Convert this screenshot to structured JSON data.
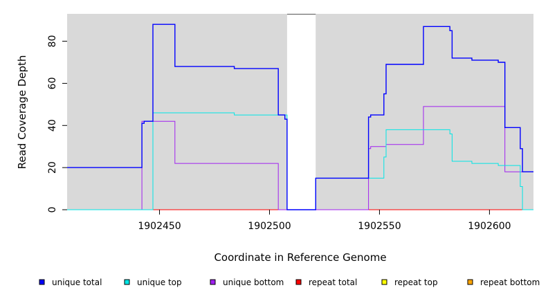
{
  "chart_data": {
    "type": "line",
    "xlabel": "Coordinate in Reference Genome",
    "ylabel": "Read Coverage Depth",
    "xlim": [
      1902408,
      1902620
    ],
    "ylim": [
      0,
      93
    ],
    "x_ticks": [
      1902450,
      1902500,
      1902550,
      1902600
    ],
    "y_ticks": [
      0,
      20,
      40,
      60,
      80
    ],
    "background_color": "#d9d9d9",
    "gap_regions": [
      [
        1902508,
        1902521
      ]
    ],
    "series": [
      {
        "name": "unique total",
        "color": "#0000ff",
        "step": true,
        "points": [
          [
            1902408,
            20
          ],
          [
            1902442,
            20
          ],
          [
            1902442,
            41
          ],
          [
            1902443,
            41
          ],
          [
            1902443,
            42
          ],
          [
            1902447,
            42
          ],
          [
            1902447,
            88
          ],
          [
            1902457,
            88
          ],
          [
            1902457,
            68
          ],
          [
            1902484,
            68
          ],
          [
            1902484,
            67
          ],
          [
            1902504,
            67
          ],
          [
            1902504,
            45
          ],
          [
            1902507,
            45
          ],
          [
            1902507,
            43
          ],
          [
            1902508,
            43
          ],
          [
            1902508,
            0
          ],
          [
            1902521,
            0
          ],
          [
            1902521,
            15
          ],
          [
            1902545,
            15
          ],
          [
            1902545,
            44
          ],
          [
            1902546,
            44
          ],
          [
            1902546,
            45
          ],
          [
            1902552,
            45
          ],
          [
            1902552,
            55
          ],
          [
            1902553,
            55
          ],
          [
            1902553,
            69
          ],
          [
            1902570,
            69
          ],
          [
            1902570,
            87
          ],
          [
            1902582,
            87
          ],
          [
            1902582,
            85
          ],
          [
            1902583,
            85
          ],
          [
            1902583,
            72
          ],
          [
            1902592,
            72
          ],
          [
            1902592,
            71
          ],
          [
            1902604,
            71
          ],
          [
            1902604,
            70
          ],
          [
            1902607,
            70
          ],
          [
            1902607,
            39
          ],
          [
            1902614,
            39
          ],
          [
            1902614,
            29
          ],
          [
            1902615,
            29
          ],
          [
            1902615,
            18
          ],
          [
            1902620,
            18
          ]
        ]
      },
      {
        "name": "unique top",
        "color": "#00e5e5",
        "step": true,
        "points": [
          [
            1902408,
            0
          ],
          [
            1902447,
            0
          ],
          [
            1902447,
            46
          ],
          [
            1902484,
            46
          ],
          [
            1902484,
            45
          ],
          [
            1902508,
            45
          ],
          [
            1902508,
            0
          ],
          [
            1902521,
            0
          ],
          [
            1902521,
            15
          ],
          [
            1902552,
            15
          ],
          [
            1902552,
            25
          ],
          [
            1902553,
            25
          ],
          [
            1902553,
            38
          ],
          [
            1902582,
            38
          ],
          [
            1902582,
            36
          ],
          [
            1902583,
            36
          ],
          [
            1902583,
            23
          ],
          [
            1902592,
            23
          ],
          [
            1902592,
            22
          ],
          [
            1902604,
            22
          ],
          [
            1902604,
            21
          ],
          [
            1902614,
            21
          ],
          [
            1902614,
            11
          ],
          [
            1902615,
            11
          ],
          [
            1902615,
            0
          ],
          [
            1902620,
            0
          ]
        ]
      },
      {
        "name": "unique bottom",
        "color": "#a020f0",
        "step": true,
        "points": [
          [
            1902408,
            0
          ],
          [
            1902442,
            0
          ],
          [
            1902442,
            42
          ],
          [
            1902457,
            42
          ],
          [
            1902457,
            22
          ],
          [
            1902504,
            22
          ],
          [
            1902504,
            0
          ],
          [
            1902545,
            0
          ],
          [
            1902545,
            29
          ],
          [
            1902546,
            29
          ],
          [
            1902546,
            30
          ],
          [
            1902553,
            30
          ],
          [
            1902553,
            31
          ],
          [
            1902570,
            31
          ],
          [
            1902570,
            49
          ],
          [
            1902607,
            49
          ],
          [
            1902607,
            18
          ],
          [
            1902620,
            18
          ]
        ]
      },
      {
        "name": "repeat total",
        "color": "#ff0000",
        "step": true,
        "points": [
          [
            1902408,
            0
          ],
          [
            1902620,
            0
          ]
        ]
      },
      {
        "name": "repeat top",
        "color": "#ffff00",
        "step": true,
        "points": [
          [
            1902408,
            0
          ],
          [
            1902620,
            0
          ]
        ]
      },
      {
        "name": "repeat bottom",
        "color": "#ffa500",
        "step": true,
        "points": [
          [
            1902408,
            0
          ],
          [
            1902620,
            0
          ]
        ]
      }
    ],
    "legend_placement": "bottom"
  }
}
